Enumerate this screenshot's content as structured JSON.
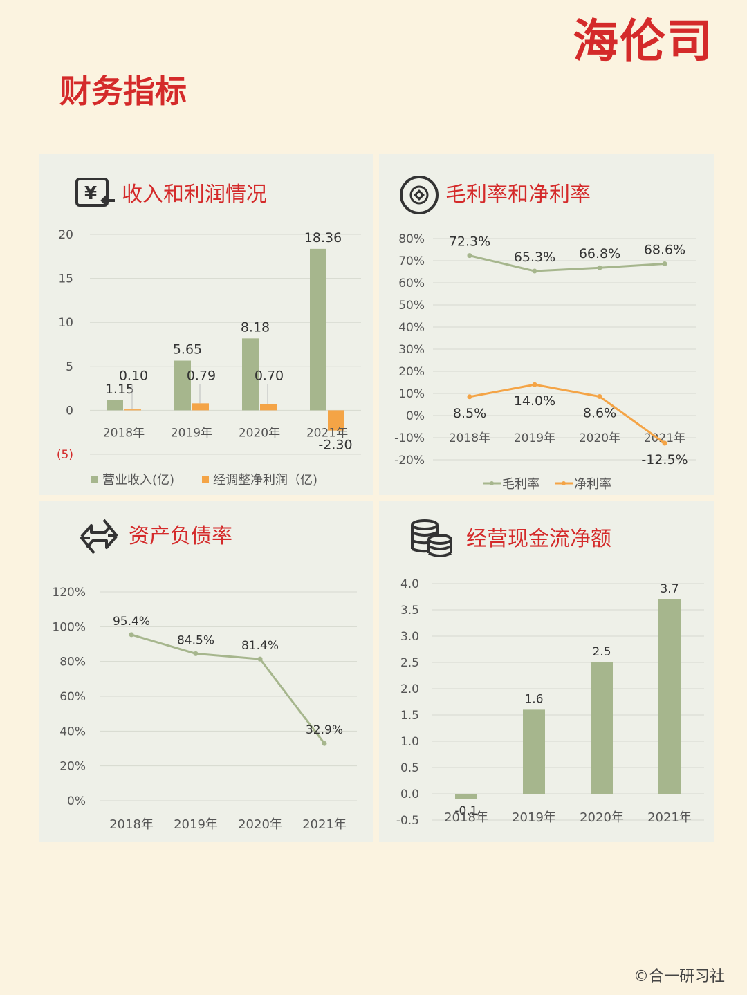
{
  "brand": "海伦司",
  "heading": "财务指标",
  "copyright": "©合一研习社",
  "colors": {
    "green": "#a6b68d",
    "orange": "#f4a446",
    "red": "#d42a2a",
    "grid": "#d6d9cf",
    "text": "#555555"
  },
  "panels": {
    "revenue_profit": {
      "title": "收入和利润情况",
      "icon": "yuan-exchange-icon"
    },
    "margins": {
      "title": "毛利率和净利率",
      "icon": "coin-circle-icon"
    },
    "debt": {
      "title": "资产负债率",
      "icon": "exchange-arrows-icon"
    },
    "cashflow": {
      "title": "经营现金流净额",
      "icon": "coin-stack-icon"
    }
  },
  "chart_data": [
    {
      "id": "revenue_profit",
      "type": "bar",
      "categories": [
        "2018年",
        "2019年",
        "2020年",
        "2021年"
      ],
      "series": [
        {
          "name": "营业收入(亿)",
          "values": [
            1.15,
            5.65,
            8.18,
            18.36
          ],
          "labels": [
            "1.15",
            "5.65",
            "8.18",
            "18.36"
          ],
          "color": "#a6b68d"
        },
        {
          "name": "经调整净利润（亿)",
          "values": [
            0.1,
            0.79,
            0.7,
            -2.3
          ],
          "labels": [
            "0.10",
            "0.79",
            "0.70",
            "-2.30"
          ],
          "color": "#f4a446"
        }
      ],
      "ylim": [
        -5,
        20
      ],
      "yticks": [
        20,
        15,
        10,
        5,
        0,
        -5
      ],
      "ytick_labels": [
        "20",
        "15",
        "10",
        "5",
        "0",
        "(5)"
      ],
      "legend": "bottom",
      "grid": true
    },
    {
      "id": "margins",
      "type": "line",
      "categories": [
        "2018年",
        "2019年",
        "2020年",
        "2021年"
      ],
      "series": [
        {
          "name": "毛利率",
          "values": [
            72.3,
            65.3,
            66.8,
            68.6
          ],
          "labels": [
            "72.3%",
            "65.3%",
            "66.8%",
            "68.6%"
          ],
          "color": "#a6b68d"
        },
        {
          "name": "净利率",
          "values": [
            8.5,
            14.0,
            8.6,
            -12.5
          ],
          "labels": [
            "8.5%",
            "14.0%",
            "8.6%",
            "-12.5%"
          ],
          "color": "#f4a446"
        }
      ],
      "ylim": [
        -20,
        80
      ],
      "yticks": [
        80,
        70,
        60,
        50,
        40,
        30,
        20,
        10,
        0,
        -10,
        -20
      ],
      "ytick_labels": [
        "80%",
        "70%",
        "60%",
        "50%",
        "40%",
        "30%",
        "20%",
        "10%",
        "0%",
        "-10%",
        "-20%"
      ],
      "legend": "bottom",
      "grid": true
    },
    {
      "id": "debt",
      "type": "line",
      "categories": [
        "2018年",
        "2019年",
        "2020年",
        "2021年"
      ],
      "series": [
        {
          "values": [
            95.4,
            84.5,
            81.4,
            32.9
          ],
          "labels": [
            "95.4%",
            "84.5%",
            "81.4%",
            "32.9%"
          ],
          "color": "#a6b68d"
        }
      ],
      "ylim": [
        0,
        120
      ],
      "yticks": [
        120,
        100,
        80,
        60,
        40,
        20,
        0
      ],
      "ytick_labels": [
        "120%",
        "100%",
        "80%",
        "60%",
        "40%",
        "20%",
        "0%"
      ],
      "grid": true
    },
    {
      "id": "cashflow",
      "type": "bar",
      "categories": [
        "2018年",
        "2019年",
        "2020年",
        "2021年"
      ],
      "series": [
        {
          "values": [
            -0.1,
            1.6,
            2.5,
            3.7
          ],
          "labels": [
            "-0.1",
            "1.6",
            "2.5",
            "3.7"
          ],
          "color": "#a6b68d"
        }
      ],
      "ylim": [
        -0.5,
        4.0
      ],
      "yticks": [
        4.0,
        3.5,
        3.0,
        2.5,
        2.0,
        1.5,
        1.0,
        0.5,
        0.0,
        -0.5
      ],
      "ytick_labels": [
        "4.0",
        "3.5",
        "3.0",
        "2.5",
        "2.0",
        "1.5",
        "1.0",
        "0.5",
        "0.0",
        "-0.5"
      ],
      "grid": true
    }
  ]
}
